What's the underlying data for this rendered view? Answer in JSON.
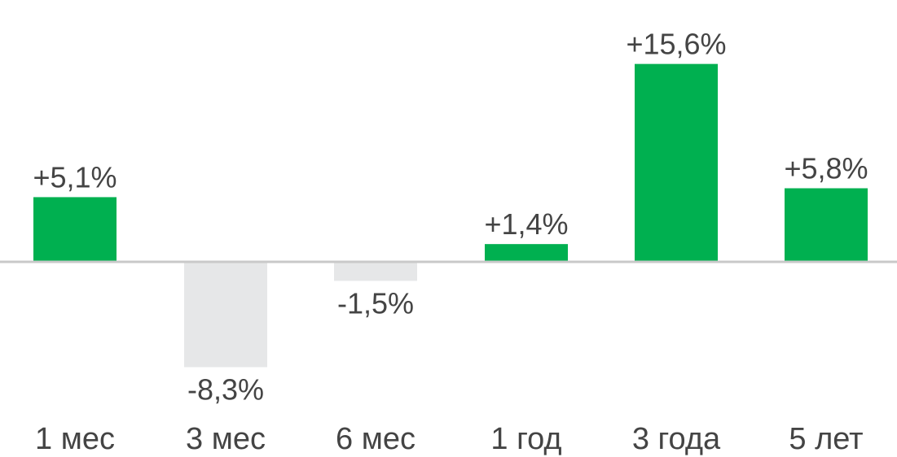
{
  "chart_data": {
    "type": "bar",
    "categories": [
      "1 мес",
      "3 мес",
      "6 мес",
      "1 год",
      "3 года",
      "5 лет"
    ],
    "values": [
      5.1,
      -8.3,
      -1.5,
      1.4,
      15.6,
      5.8
    ],
    "data_labels": [
      "+5,1%",
      "-8,3%",
      "-1,5%",
      "+1,4%",
      "+15,6%",
      "+5,8%"
    ],
    "title": "",
    "xlabel": "",
    "ylabel": "",
    "grid": false,
    "legend": "none",
    "colors": {
      "positive": "#00b050",
      "negative": "#e6e7e8",
      "baseline": "#c9c9c9",
      "text": "#444444"
    }
  }
}
